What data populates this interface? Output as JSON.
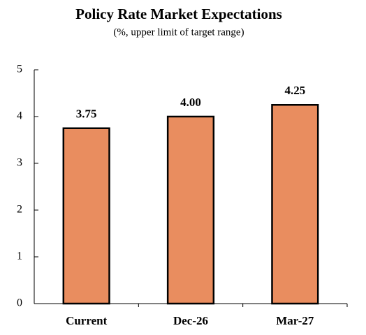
{
  "chart_data": {
    "type": "bar",
    "title": "Policy Rate Market Expectations",
    "subtitle": "(%, upper limit of target range)",
    "categories": [
      "Current",
      "Dec-26",
      "Mar-27"
    ],
    "values": [
      3.75,
      4.0,
      4.25
    ],
    "value_labels": [
      "3.75",
      "4.00",
      "4.25"
    ],
    "color": "#e98d5f",
    "ylim": [
      0,
      5
    ],
    "yticks": [
      0,
      1,
      2,
      3,
      4,
      5
    ]
  }
}
